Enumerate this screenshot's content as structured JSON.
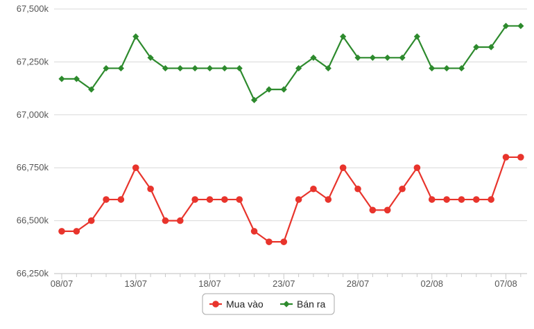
{
  "chart_data": {
    "type": "line",
    "title": "",
    "xlabel": "",
    "ylabel": "",
    "x": [
      "08/07",
      "09/07",
      "10/07",
      "11/07",
      "12/07",
      "13/07",
      "14/07",
      "15/07",
      "16/07",
      "17/07",
      "18/07",
      "19/07",
      "20/07",
      "21/07",
      "22/07",
      "23/07",
      "24/07",
      "25/07",
      "26/07",
      "27/07",
      "28/07",
      "29/07",
      "30/07",
      "31/07",
      "01/08",
      "02/08",
      "03/08",
      "04/08",
      "05/08",
      "06/08",
      "07/08",
      "08/08"
    ],
    "x_tick_labels": [
      "08/07",
      "13/07",
      "18/07",
      "23/07",
      "28/07",
      "02/08",
      "07/08"
    ],
    "ylim": [
      66250,
      67500
    ],
    "y_ticks": [
      66250,
      66500,
      66750,
      67000,
      67250,
      67500
    ],
    "y_tick_labels": [
      "66,250k",
      "66,500k",
      "66,750k",
      "67,000k",
      "67,250k",
      "67,500k"
    ],
    "grid": true,
    "legend_position": "bottom-center",
    "series": [
      {
        "name": "Mua vào",
        "color": "#e8342c",
        "marker": "circle",
        "values": [
          66450,
          66450,
          66500,
          66600,
          66600,
          66750,
          66650,
          66500,
          66500,
          66600,
          66600,
          66600,
          66600,
          66450,
          66400,
          66400,
          66600,
          66650,
          66600,
          66750,
          66650,
          66550,
          66550,
          66650,
          66750,
          66600,
          66600,
          66600,
          66600,
          66600,
          66800,
          66800
        ]
      },
      {
        "name": "Bán ra",
        "color": "#2d8a2d",
        "marker": "diamond",
        "values": [
          67170,
          67170,
          67120,
          67220,
          67220,
          67370,
          67270,
          67220,
          67220,
          67220,
          67220,
          67220,
          67220,
          67070,
          67120,
          67120,
          67220,
          67270,
          67220,
          67370,
          67270,
          67270,
          67270,
          67270,
          67370,
          67220,
          67220,
          67220,
          67320,
          67320,
          67420,
          67420
        ]
      }
    ]
  }
}
